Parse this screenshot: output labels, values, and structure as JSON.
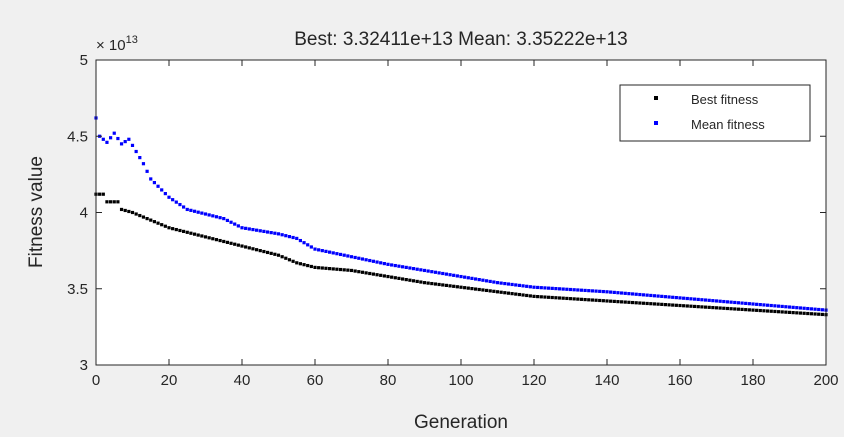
{
  "chart_data": {
    "type": "scatter",
    "title": "Best: 3.32411e+13 Mean: 3.35222e+13",
    "xlabel": "Generation",
    "ylabel": "Fitness value",
    "y_exponent_label": "× 10",
    "y_exponent": "13",
    "xlim": [
      0,
      200
    ],
    "ylim": [
      3,
      5
    ],
    "x_ticks": [
      0,
      20,
      40,
      60,
      80,
      100,
      120,
      140,
      160,
      180,
      200
    ],
    "y_ticks": [
      3,
      3.5,
      4,
      4.5,
      5
    ],
    "grid": false,
    "legend_position": "top-right",
    "series": [
      {
        "name": "Best fitness",
        "color": "#000000",
        "anchors": [
          [
            0,
            4.12
          ],
          [
            2,
            4.12
          ],
          [
            3,
            4.07
          ],
          [
            6,
            4.07
          ],
          [
            7,
            4.02
          ],
          [
            10,
            4.0
          ],
          [
            15,
            3.95
          ],
          [
            20,
            3.9
          ],
          [
            30,
            3.84
          ],
          [
            40,
            3.78
          ],
          [
            50,
            3.72
          ],
          [
            55,
            3.67
          ],
          [
            60,
            3.64
          ],
          [
            70,
            3.62
          ],
          [
            80,
            3.58
          ],
          [
            90,
            3.54
          ],
          [
            100,
            3.51
          ],
          [
            110,
            3.48
          ],
          [
            120,
            3.45
          ],
          [
            140,
            3.42
          ],
          [
            160,
            3.39
          ],
          [
            180,
            3.36
          ],
          [
            200,
            3.33
          ]
        ]
      },
      {
        "name": "Mean fitness",
        "color": "#0000ff",
        "anchors": [
          [
            0,
            4.62
          ],
          [
            1,
            4.5
          ],
          [
            3,
            4.46
          ],
          [
            5,
            4.52
          ],
          [
            7,
            4.45
          ],
          [
            9,
            4.48
          ],
          [
            11,
            4.4
          ],
          [
            13,
            4.32
          ],
          [
            15,
            4.22
          ],
          [
            20,
            4.1
          ],
          [
            25,
            4.02
          ],
          [
            30,
            3.99
          ],
          [
            35,
            3.96
          ],
          [
            40,
            3.9
          ],
          [
            50,
            3.86
          ],
          [
            55,
            3.83
          ],
          [
            60,
            3.76
          ],
          [
            70,
            3.71
          ],
          [
            80,
            3.66
          ],
          [
            90,
            3.62
          ],
          [
            100,
            3.58
          ],
          [
            110,
            3.54
          ],
          [
            120,
            3.51
          ],
          [
            140,
            3.48
          ],
          [
            160,
            3.44
          ],
          [
            180,
            3.4
          ],
          [
            200,
            3.36
          ]
        ]
      }
    ]
  }
}
